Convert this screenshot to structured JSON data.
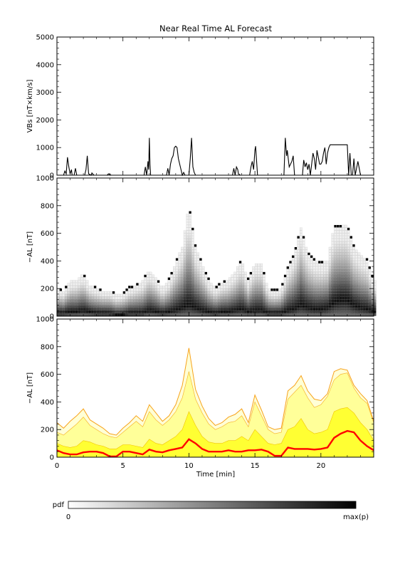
{
  "chart_data": [
    {
      "type": "line",
      "title": "Near Real Time AL Forecast",
      "ylabel": "VBs [nT×km/s]",
      "xlim": [
        0,
        24
      ],
      "ylim": [
        0,
        5000
      ],
      "yticks": [
        "0",
        "1000",
        "2000",
        "3000",
        "4000",
        "5000"
      ],
      "series": [
        {
          "x": [
            0,
            0.5,
            0.6,
            0.7,
            0.8,
            0.9,
            1.0,
            1.1,
            1.15,
            1.3,
            1.4,
            1.5,
            2.1,
            2.2,
            2.3,
            2.4,
            2.6,
            2.65,
            2.8,
            3.8,
            3.9,
            4.0,
            4.1,
            5.0,
            6.6,
            6.7,
            6.8,
            6.9,
            6.95,
            7.0,
            7.05,
            7.1,
            7.2,
            7.3,
            8.3,
            8.4,
            8.5,
            8.6,
            8.7,
            8.8,
            8.9,
            9.0,
            9.1,
            9.2,
            9.4,
            9.5,
            9.6,
            9.7,
            10.0,
            10.1,
            10.2,
            10.3,
            10.4,
            10.5,
            10.6,
            11.0,
            11.9,
            12.0,
            13.3,
            13.4,
            13.5,
            13.6,
            13.7,
            13.75,
            13.9,
            14.6,
            14.7,
            14.8,
            14.9,
            15.0,
            15.05,
            15.2,
            15.3,
            17.2,
            17.3,
            17.4,
            17.45,
            17.6,
            17.8,
            17.9,
            18.0,
            18.1,
            18.6,
            18.7,
            18.8,
            18.9,
            19.0,
            19.1,
            19.2,
            19.4,
            19.5,
            19.6,
            19.7,
            19.9,
            20.0,
            20.1,
            20.2,
            20.3,
            20.4,
            20.5,
            20.6,
            20.7,
            20.8,
            21.0,
            21.5,
            22.0,
            22.1,
            22.2,
            22.3,
            22.4,
            22.5,
            22.6,
            22.8,
            23.0,
            23.9
          ],
          "values": [
            0,
            0,
            150,
            50,
            650,
            300,
            50,
            200,
            0,
            0,
            250,
            0,
            0,
            200,
            700,
            50,
            0,
            80,
            0,
            0,
            50,
            30,
            0,
            0,
            0,
            300,
            0,
            500,
            200,
            1350,
            400,
            0,
            0,
            0,
            0,
            250,
            0,
            400,
            600,
            700,
            1000,
            1050,
            1000,
            600,
            200,
            0,
            100,
            0,
            0,
            600,
            1350,
            300,
            100,
            0,
            0,
            0,
            0,
            0,
            0,
            250,
            0,
            300,
            200,
            50,
            0,
            0,
            300,
            500,
            200,
            900,
            1050,
            0,
            0,
            0,
            1350,
            700,
            900,
            300,
            500,
            700,
            0,
            0,
            0,
            550,
            300,
            450,
            200,
            400,
            0,
            800,
            600,
            200,
            900,
            400,
            400,
            500,
            800,
            1000,
            400,
            800,
            1000,
            1100,
            1100,
            1100,
            1100,
            1100,
            0,
            800,
            0,
            0,
            600,
            0,
            500,
            0,
            0
          ]
        }
      ]
    },
    {
      "type": "heatmap",
      "ylabel": "−AL [nT]",
      "xlim": [
        0,
        24
      ],
      "ylim": [
        0,
        1000
      ],
      "yticks": [
        "0",
        "200",
        "400",
        "600",
        "800",
        "1000"
      ],
      "x": [
        0,
        0.5,
        1,
        1.5,
        2,
        2.5,
        3,
        3.5,
        4,
        4.5,
        5,
        5.5,
        6,
        6.5,
        7,
        7.5,
        8,
        8.5,
        9,
        9.5,
        10,
        10.5,
        11,
        11.5,
        12,
        12.5,
        13,
        13.5,
        14,
        14.5,
        15,
        15.5,
        16,
        16.5,
        17,
        17.5,
        18,
        18.5,
        19,
        19.5,
        20,
        20.5,
        21,
        21.5,
        22,
        22.5,
        23,
        23.5,
        24
      ],
      "max_level": [
        200,
        180,
        250,
        260,
        300,
        220,
        200,
        180,
        180,
        150,
        160,
        200,
        220,
        250,
        330,
        280,
        200,
        260,
        380,
        500,
        800,
        500,
        380,
        260,
        200,
        240,
        260,
        320,
        400,
        260,
        380,
        380,
        200,
        180,
        200,
        350,
        450,
        640,
        460,
        400,
        380,
        400,
        640,
        650,
        650,
        500,
        440,
        400,
        250
      ],
      "mode_level": [
        20,
        20,
        30,
        30,
        40,
        30,
        20,
        20,
        20,
        10,
        10,
        20,
        20,
        20,
        40,
        30,
        20,
        30,
        40,
        60,
        80,
        60,
        40,
        30,
        20,
        30,
        30,
        40,
        50,
        30,
        40,
        40,
        20,
        20,
        20,
        40,
        50,
        80,
        60,
        50,
        50,
        60,
        100,
        120,
        120,
        80,
        60,
        50,
        30
      ],
      "colorbar": {
        "label": "pdf",
        "min_label": "0",
        "max_label": "max(p)"
      }
    },
    {
      "type": "area",
      "ylabel": "−AL [nT]",
      "xlabel": "Time [min]",
      "xlim": [
        0,
        24
      ],
      "ylim": [
        0,
        1000
      ],
      "xticks": [
        "0",
        "5",
        "10",
        "15",
        "20"
      ],
      "yticks": [
        "0",
        "200",
        "400",
        "600",
        "800",
        "1000"
      ],
      "x": [
        0,
        0.5,
        1,
        1.5,
        2,
        2.5,
        3,
        3.5,
        4,
        4.5,
        5,
        5.5,
        6,
        6.5,
        7,
        7.5,
        8,
        8.5,
        9,
        9.5,
        10,
        10.5,
        11,
        11.5,
        12,
        12.5,
        13,
        13.5,
        14,
        14.5,
        15,
        15.5,
        16,
        16.5,
        17,
        17.5,
        18,
        18.5,
        19,
        19.5,
        20,
        20.5,
        21,
        21.5,
        22,
        22.5,
        23,
        23.5,
        24
      ],
      "series": [
        {
          "name": "",
          "color": "#ff0000",
          "values": [
            50,
            30,
            20,
            20,
            35,
            40,
            40,
            30,
            5,
            5,
            40,
            40,
            30,
            20,
            55,
            40,
            35,
            50,
            60,
            70,
            130,
            100,
            60,
            40,
            40,
            40,
            50,
            40,
            40,
            50,
            50,
            55,
            40,
            10,
            10,
            70,
            60,
            60,
            60,
            55,
            60,
            70,
            140,
            170,
            190,
            180,
            120,
            80,
            50
          ]
        },
        {
          "name": "",
          "color": "#ffff00",
          "values": [
            100,
            80,
            70,
            80,
            120,
            110,
            90,
            80,
            60,
            60,
            90,
            90,
            80,
            70,
            130,
            100,
            90,
            120,
            150,
            200,
            330,
            230,
            150,
            110,
            100,
            100,
            120,
            120,
            150,
            120,
            200,
            150,
            100,
            90,
            100,
            200,
            220,
            280,
            200,
            170,
            180,
            200,
            330,
            350,
            360,
            320,
            250,
            200,
            120
          ]
        },
        {
          "name": "",
          "color": "#ffff99",
          "values": [
            180,
            160,
            200,
            240,
            290,
            230,
            200,
            170,
            150,
            140,
            180,
            220,
            260,
            220,
            330,
            270,
            230,
            270,
            330,
            430,
            620,
            420,
            320,
            240,
            200,
            220,
            250,
            260,
            300,
            220,
            400,
            300,
            200,
            170,
            180,
            420,
            470,
            520,
            430,
            360,
            380,
            440,
            560,
            600,
            610,
            500,
            430,
            390,
            250
          ]
        },
        {
          "name": "",
          "color": "#f7a21b",
          "values": [
            250,
            210,
            260,
            300,
            350,
            270,
            240,
            210,
            170,
            160,
            210,
            250,
            300,
            260,
            380,
            320,
            260,
            300,
            380,
            520,
            790,
            490,
            370,
            280,
            230,
            250,
            290,
            310,
            350,
            250,
            450,
            340,
            220,
            200,
            210,
            480,
            520,
            590,
            480,
            420,
            410,
            460,
            620,
            640,
            630,
            520,
            460,
            410,
            260
          ]
        }
      ]
    }
  ]
}
